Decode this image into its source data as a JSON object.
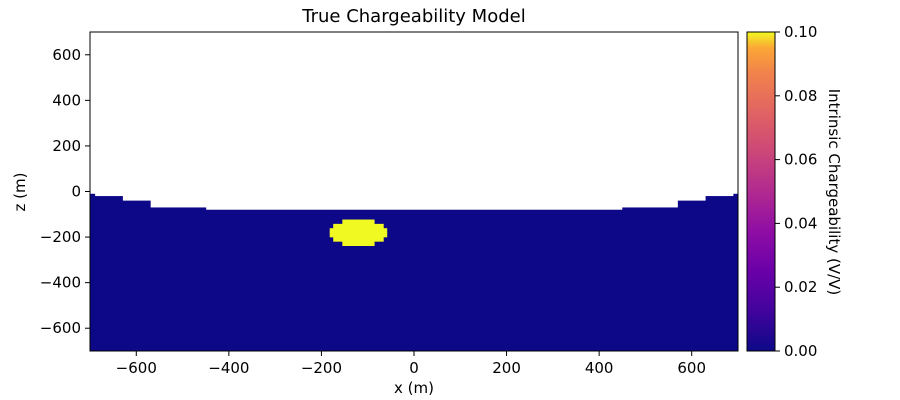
{
  "chart_data": {
    "type": "heatmap",
    "title": "True Chargeability Model",
    "xlabel": "x (m)",
    "ylabel": "z (m)",
    "xlim": [
      -700,
      700
    ],
    "ylim": [
      -700,
      700
    ],
    "x_ticks": [
      -600,
      -400,
      -200,
      0,
      200,
      400,
      600
    ],
    "y_ticks": [
      -600,
      -400,
      -200,
      0,
      200,
      400,
      600
    ],
    "colormap": "plasma",
    "colorbar": {
      "label": "Intrinsic Chargeability (V/V)",
      "range": [
        0.0,
        0.1
      ],
      "ticks": [
        "0.00",
        "0.02",
        "0.04",
        "0.06",
        "0.08",
        "0.10"
      ]
    },
    "background": {
      "value": 0.0,
      "color": "#0d0887",
      "surface_profile": [
        {
          "x_start": -700,
          "x_end": -690,
          "z_top": -10
        },
        {
          "x_start": -690,
          "x_end": -630,
          "z_top": -20
        },
        {
          "x_start": -630,
          "x_end": -570,
          "z_top": -40
        },
        {
          "x_start": -570,
          "x_end": -450,
          "z_top": -70
        },
        {
          "x_start": -450,
          "x_end": 450,
          "z_top": -80
        },
        {
          "x_start": 450,
          "x_end": 570,
          "z_top": -70
        },
        {
          "x_start": 570,
          "x_end": 630,
          "z_top": -40
        },
        {
          "x_start": 630,
          "x_end": 690,
          "z_top": -20
        },
        {
          "x_start": 690,
          "x_end": 700,
          "z_top": -10
        }
      ]
    },
    "anomaly": {
      "shape": "sphere",
      "center_x": -120,
      "center_z": -180,
      "radius_x": 60,
      "radius_z": 60,
      "value": 0.1,
      "color": "#f0f921"
    }
  }
}
